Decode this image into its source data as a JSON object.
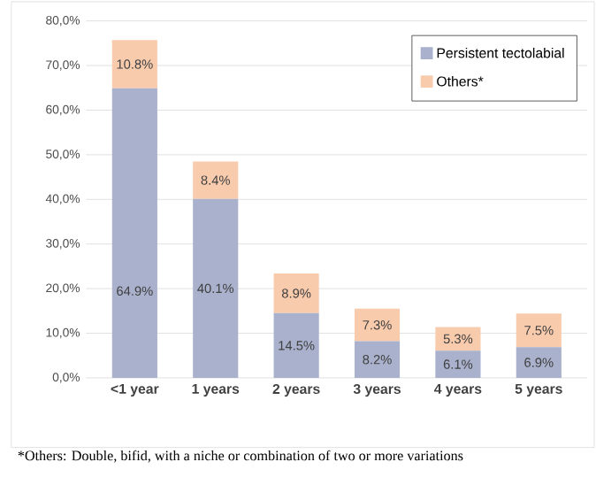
{
  "chart_data": {
    "type": "bar",
    "stacked": true,
    "categories": [
      "<1 year",
      "1 years",
      "2 years",
      "3 years",
      "4 years",
      "5 years"
    ],
    "series": [
      {
        "name": "Persistent tectolabial",
        "color": "#a9b1cc",
        "values": [
          64.9,
          40.1,
          14.5,
          8.2,
          6.1,
          6.9
        ],
        "value_labels": [
          "64.9%",
          "40.1%",
          "14.5%",
          "8.2%",
          "6.1%",
          "6.9%"
        ]
      },
      {
        "name": "Others*",
        "color": "#f8cbad",
        "values": [
          10.8,
          8.4,
          8.9,
          7.3,
          5.3,
          7.5
        ],
        "value_labels": [
          "10.8%",
          "8.4%",
          "8.9%",
          "7.3%",
          "5.3%",
          "7.5%"
        ]
      }
    ],
    "ylim": [
      0,
      80
    ],
    "yticks": [
      {
        "value": 0,
        "label": "0,0%"
      },
      {
        "value": 10,
        "label": "10,0%"
      },
      {
        "value": 20,
        "label": "20,0%"
      },
      {
        "value": 30,
        "label": "30,0%"
      },
      {
        "value": 40,
        "label": "40,0%"
      },
      {
        "value": 50,
        "label": "50,0%"
      },
      {
        "value": 60,
        "label": "60,0%"
      },
      {
        "value": 70,
        "label": "70,0%"
      },
      {
        "value": 80,
        "label": "80,0%"
      }
    ],
    "grid": "y",
    "legend": "top right",
    "annotations": [
      "*Others: Double, bifid, with a niche or combination of two or more variations"
    ]
  }
}
